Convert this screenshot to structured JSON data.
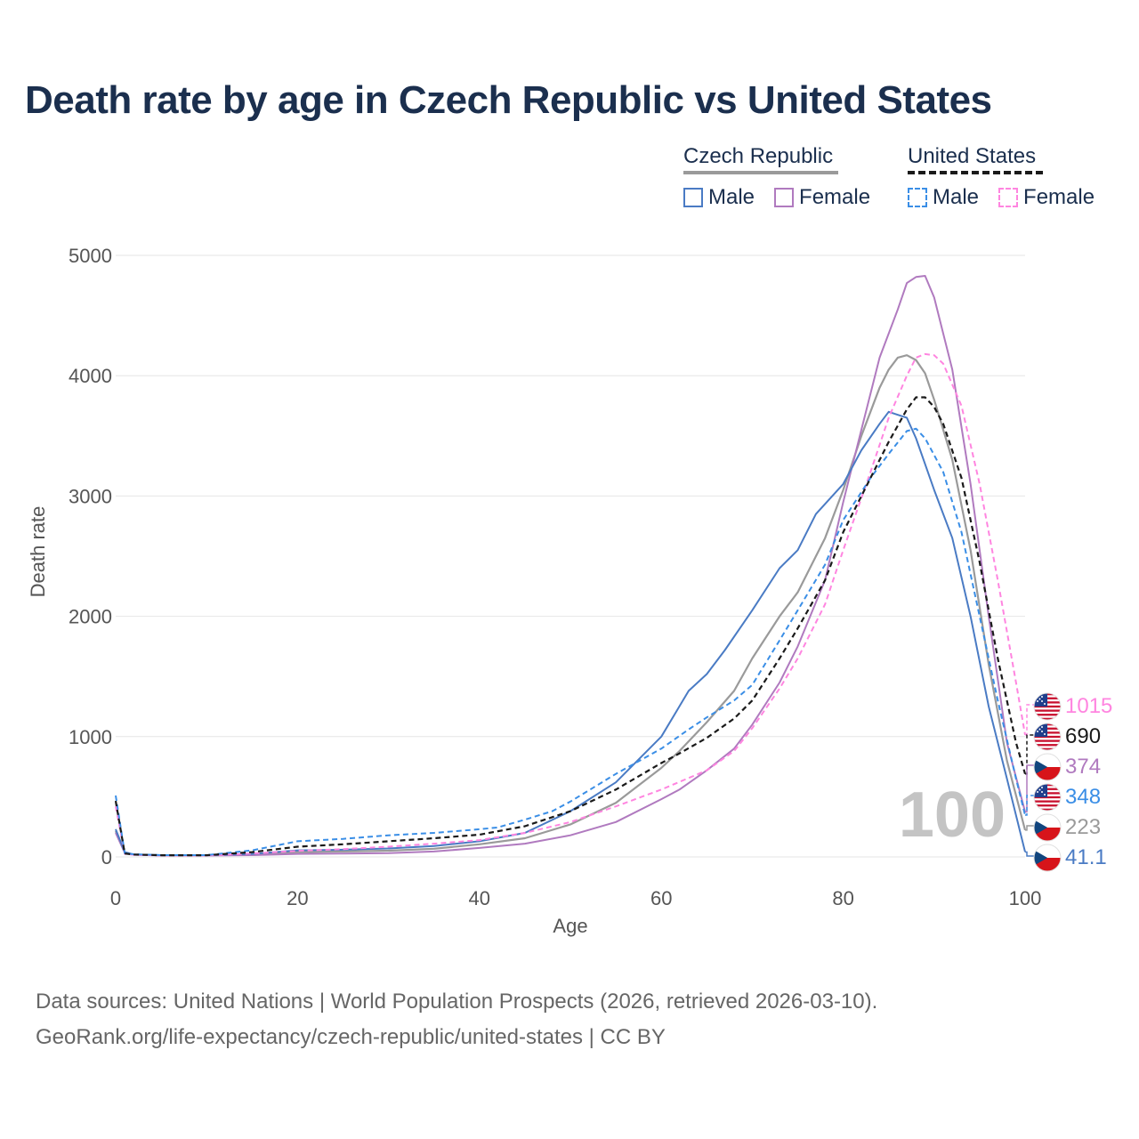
{
  "title": "Death rate by age in Czech Republic vs United States",
  "legend": {
    "groups": [
      {
        "name": "Czech Republic",
        "items": [
          {
            "label": "Male"
          },
          {
            "label": "Female"
          }
        ]
      },
      {
        "name": "United States",
        "items": [
          {
            "label": "Male"
          },
          {
            "label": "Female"
          }
        ]
      }
    ]
  },
  "colors": {
    "cz_male": "#4a7bc4",
    "cz_female": "#b07abf",
    "cz_total": "#9a9a9a",
    "us_male": "#3a8ee6",
    "us_female": "#ff85e0",
    "us_total": "#1a1a1a",
    "grid": "#e6e6e6",
    "axis_text": "#555555",
    "title": "#1b2f4e"
  },
  "chart_data": {
    "type": "line",
    "xlabel": "Age",
    "ylabel": "Death rate",
    "xlim": [
      0,
      100
    ],
    "ylim": [
      0,
      5000
    ],
    "x_ticks": [
      0,
      20,
      40,
      60,
      80,
      100
    ],
    "y_ticks": [
      0,
      1000,
      2000,
      3000,
      4000,
      5000
    ],
    "watermark": "100",
    "series": [
      {
        "id": "cz_male",
        "name": "Czech Republic Male",
        "style": "solid",
        "points": [
          [
            0,
            230
          ],
          [
            1,
            40
          ],
          [
            2,
            20
          ],
          [
            5,
            15
          ],
          [
            10,
            15
          ],
          [
            15,
            25
          ],
          [
            20,
            55
          ],
          [
            25,
            60
          ],
          [
            30,
            70
          ],
          [
            35,
            90
          ],
          [
            40,
            130
          ],
          [
            45,
            200
          ],
          [
            50,
            380
          ],
          [
            55,
            620
          ],
          [
            60,
            1000
          ],
          [
            63,
            1380
          ],
          [
            65,
            1520
          ],
          [
            67,
            1720
          ],
          [
            70,
            2050
          ],
          [
            73,
            2400
          ],
          [
            75,
            2550
          ],
          [
            77,
            2850
          ],
          [
            80,
            3100
          ],
          [
            82,
            3380
          ],
          [
            84,
            3600
          ],
          [
            85,
            3700
          ],
          [
            87,
            3650
          ],
          [
            88,
            3480
          ],
          [
            90,
            3050
          ],
          [
            92,
            2650
          ],
          [
            94,
            2000
          ],
          [
            96,
            1250
          ],
          [
            98,
            650
          ],
          [
            100,
            41.1
          ]
        ],
        "end_label": "41.1"
      },
      {
        "id": "cz_female",
        "name": "Czech Republic Female",
        "style": "solid",
        "points": [
          [
            0,
            200
          ],
          [
            1,
            35
          ],
          [
            2,
            18
          ],
          [
            5,
            12
          ],
          [
            10,
            12
          ],
          [
            15,
            15
          ],
          [
            20,
            25
          ],
          [
            25,
            28
          ],
          [
            30,
            32
          ],
          [
            35,
            45
          ],
          [
            40,
            75
          ],
          [
            45,
            110
          ],
          [
            50,
            180
          ],
          [
            55,
            290
          ],
          [
            60,
            480
          ],
          [
            62,
            560
          ],
          [
            65,
            720
          ],
          [
            68,
            900
          ],
          [
            70,
            1100
          ],
          [
            73,
            1450
          ],
          [
            75,
            1750
          ],
          [
            78,
            2300
          ],
          [
            80,
            2950
          ],
          [
            82,
            3550
          ],
          [
            84,
            4150
          ],
          [
            86,
            4550
          ],
          [
            87,
            4770
          ],
          [
            88,
            4820
          ],
          [
            89,
            4830
          ],
          [
            90,
            4650
          ],
          [
            92,
            4050
          ],
          [
            94,
            3100
          ],
          [
            96,
            2000
          ],
          [
            98,
            950
          ],
          [
            100,
            374
          ]
        ],
        "end_label": "374"
      },
      {
        "id": "cz_total",
        "name": "Czech Republic Total",
        "style": "solid",
        "points": [
          [
            0,
            215
          ],
          [
            1,
            38
          ],
          [
            2,
            19
          ],
          [
            5,
            13
          ],
          [
            10,
            13
          ],
          [
            15,
            20
          ],
          [
            20,
            40
          ],
          [
            25,
            45
          ],
          [
            30,
            52
          ],
          [
            35,
            68
          ],
          [
            40,
            105
          ],
          [
            45,
            155
          ],
          [
            50,
            270
          ],
          [
            55,
            450
          ],
          [
            60,
            740
          ],
          [
            62,
            880
          ],
          [
            65,
            1120
          ],
          [
            68,
            1380
          ],
          [
            70,
            1650
          ],
          [
            73,
            2000
          ],
          [
            75,
            2200
          ],
          [
            78,
            2650
          ],
          [
            80,
            3050
          ],
          [
            82,
            3500
          ],
          [
            84,
            3900
          ],
          [
            85,
            4050
          ],
          [
            86,
            4150
          ],
          [
            87,
            4170
          ],
          [
            88,
            4130
          ],
          [
            89,
            4020
          ],
          [
            90,
            3800
          ],
          [
            92,
            3300
          ],
          [
            94,
            2550
          ],
          [
            96,
            1600
          ],
          [
            98,
            800
          ],
          [
            100,
            223
          ]
        ],
        "end_label": "223"
      },
      {
        "id": "us_male",
        "name": "United States Male",
        "style": "dashed",
        "points": [
          [
            0,
            510
          ],
          [
            1,
            30
          ],
          [
            2,
            22
          ],
          [
            5,
            15
          ],
          [
            10,
            15
          ],
          [
            15,
            55
          ],
          [
            18,
            100
          ],
          [
            20,
            130
          ],
          [
            25,
            150
          ],
          [
            30,
            180
          ],
          [
            35,
            200
          ],
          [
            40,
            230
          ],
          [
            42,
            245
          ],
          [
            45,
            310
          ],
          [
            48,
            380
          ],
          [
            50,
            460
          ],
          [
            55,
            690
          ],
          [
            60,
            900
          ],
          [
            63,
            1060
          ],
          [
            65,
            1160
          ],
          [
            68,
            1300
          ],
          [
            70,
            1430
          ],
          [
            73,
            1800
          ],
          [
            75,
            2050
          ],
          [
            78,
            2430
          ],
          [
            80,
            2800
          ],
          [
            83,
            3150
          ],
          [
            85,
            3350
          ],
          [
            87,
            3540
          ],
          [
            88,
            3560
          ],
          [
            89,
            3480
          ],
          [
            91,
            3200
          ],
          [
            93,
            2700
          ],
          [
            95,
            2000
          ],
          [
            97,
            1300
          ],
          [
            99,
            650
          ],
          [
            100,
            348
          ]
        ],
        "end_label": "348"
      },
      {
        "id": "us_female",
        "name": "United States Female",
        "style": "dashed",
        "points": [
          [
            0,
            420
          ],
          [
            1,
            25
          ],
          [
            2,
            18
          ],
          [
            5,
            12
          ],
          [
            10,
            12
          ],
          [
            15,
            28
          ],
          [
            20,
            50
          ],
          [
            25,
            65
          ],
          [
            30,
            85
          ],
          [
            35,
            110
          ],
          [
            40,
            140
          ],
          [
            45,
            200
          ],
          [
            50,
            290
          ],
          [
            55,
            420
          ],
          [
            60,
            560
          ],
          [
            65,
            720
          ],
          [
            68,
            880
          ],
          [
            70,
            1070
          ],
          [
            73,
            1400
          ],
          [
            75,
            1650
          ],
          [
            78,
            2100
          ],
          [
            80,
            2550
          ],
          [
            83,
            3200
          ],
          [
            85,
            3650
          ],
          [
            87,
            4000
          ],
          [
            88,
            4150
          ],
          [
            89,
            4180
          ],
          [
            90,
            4170
          ],
          [
            91,
            4100
          ],
          [
            93,
            3750
          ],
          [
            95,
            3100
          ],
          [
            97,
            2300
          ],
          [
            99,
            1450
          ],
          [
            100,
            1015
          ]
        ],
        "end_label": "1015"
      },
      {
        "id": "us_total",
        "name": "United States Total",
        "style": "dashed",
        "points": [
          [
            0,
            465
          ],
          [
            1,
            28
          ],
          [
            2,
            20
          ],
          [
            5,
            14
          ],
          [
            10,
            14
          ],
          [
            15,
            40
          ],
          [
            20,
            85
          ],
          [
            25,
            105
          ],
          [
            30,
            130
          ],
          [
            35,
            155
          ],
          [
            40,
            185
          ],
          [
            45,
            255
          ],
          [
            50,
            380
          ],
          [
            55,
            560
          ],
          [
            60,
            780
          ],
          [
            62,
            860
          ],
          [
            65,
            990
          ],
          [
            68,
            1150
          ],
          [
            70,
            1300
          ],
          [
            73,
            1650
          ],
          [
            75,
            1900
          ],
          [
            78,
            2300
          ],
          [
            80,
            2700
          ],
          [
            83,
            3150
          ],
          [
            85,
            3450
          ],
          [
            87,
            3720
          ],
          [
            88,
            3820
          ],
          [
            89,
            3820
          ],
          [
            90,
            3740
          ],
          [
            91,
            3600
          ],
          [
            93,
            3150
          ],
          [
            95,
            2450
          ],
          [
            97,
            1650
          ],
          [
            99,
            950
          ],
          [
            100,
            690
          ]
        ],
        "end_label": "690"
      }
    ],
    "end_labels_order": [
      {
        "series": "us_female",
        "flag": "us",
        "label": "1015"
      },
      {
        "series": "us_total",
        "flag": "us",
        "label": "690"
      },
      {
        "series": "cz_female",
        "flag": "cz",
        "label": "374"
      },
      {
        "series": "us_male",
        "flag": "us",
        "label": "348"
      },
      {
        "series": "cz_total",
        "flag": "cz",
        "label": "223"
      },
      {
        "series": "cz_male",
        "flag": "cz",
        "label": "41.1"
      }
    ]
  },
  "footer": {
    "line1": "Data sources: United Nations | World Population Prospects (2026, retrieved 2026-03-10).",
    "line2": "GeoRank.org/life-expectancy/czech-republic/united-states | CC BY"
  }
}
